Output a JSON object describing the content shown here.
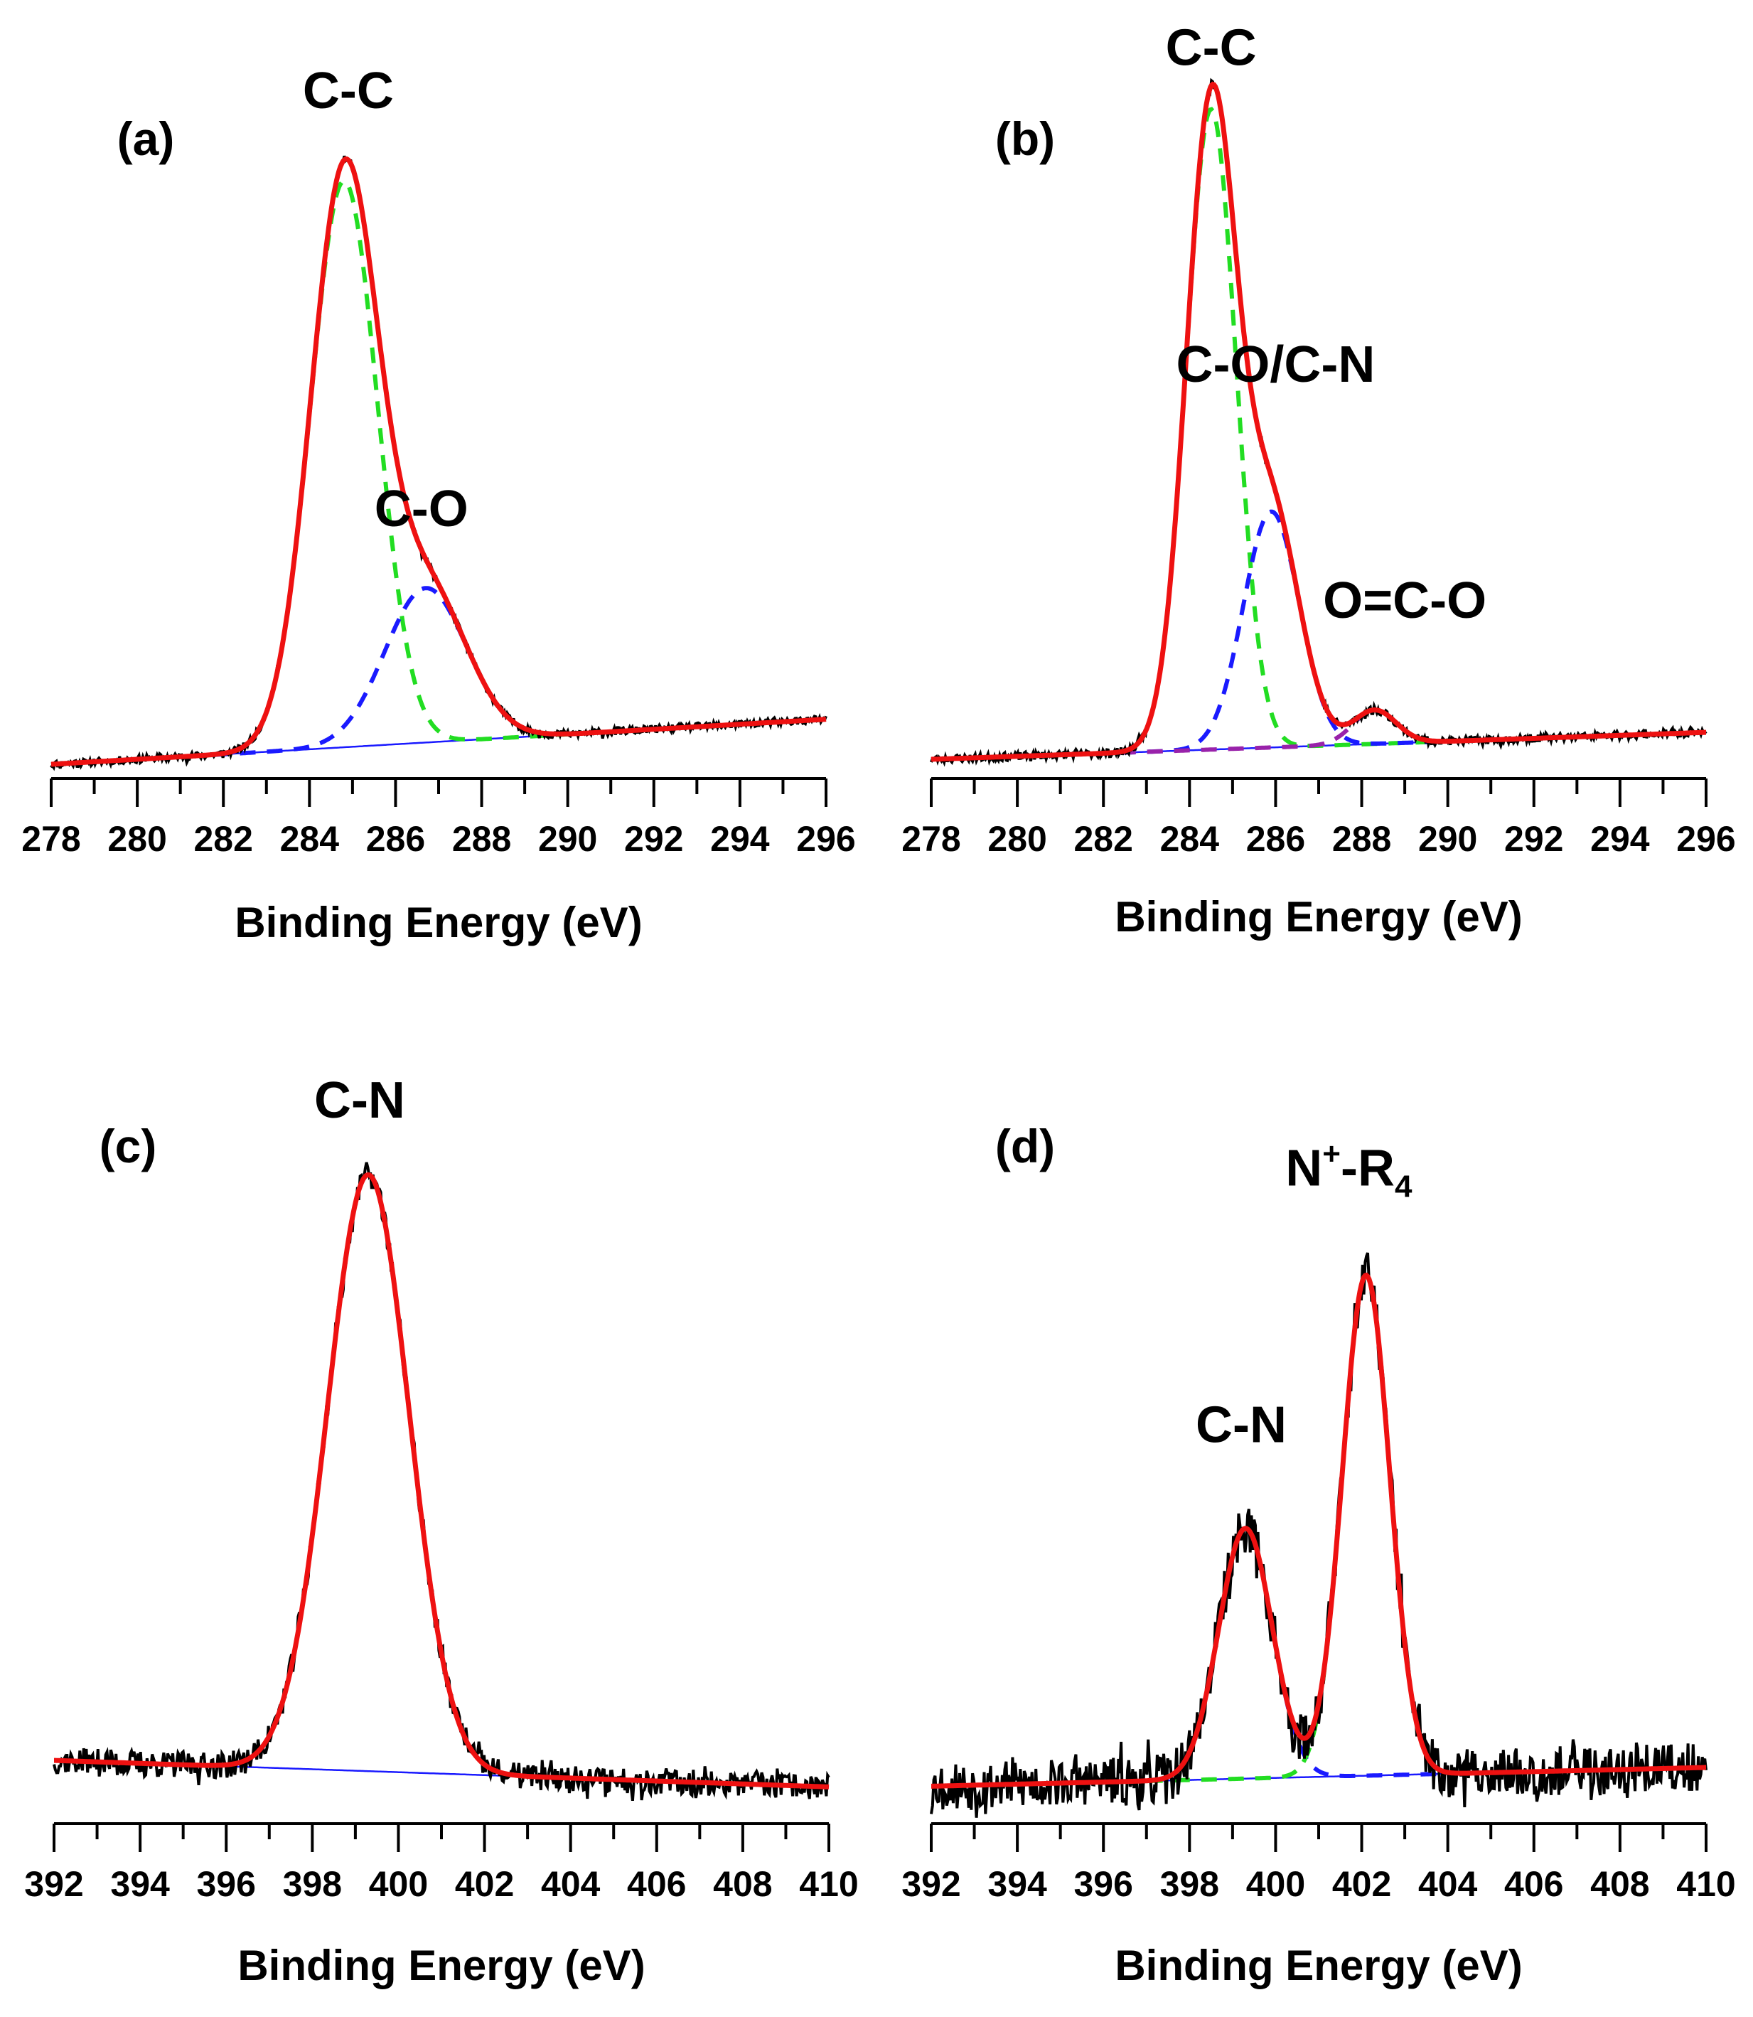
{
  "chart_data": [
    {
      "id": "a",
      "type": "line",
      "panel_label": "(a)",
      "xlabel": "Binding Energy (eV)",
      "ylabel": "",
      "xlim": [
        278,
        296
      ],
      "ylim": [
        0,
        100
      ],
      "xticks": [
        "278",
        "280",
        "282",
        "284",
        "286",
        "288",
        "290",
        "292",
        "294",
        "296"
      ],
      "background": {
        "start": 0,
        "end": 7
      },
      "peaks": [
        {
          "label": "C-C",
          "center": 284.8,
          "amplitude": 88,
          "sigma": 0.78,
          "color": "#22dd22"
        },
        {
          "label": "C-O",
          "center": 286.7,
          "amplitude": 24,
          "sigma": 0.95,
          "color": "#1a1aff"
        }
      ],
      "annotations": [
        {
          "text": "C-C",
          "x": 284.9,
          "y": 102,
          "sup": "",
          "sub": ""
        },
        {
          "text": "C-O",
          "x": 286.6,
          "y": 37,
          "sup": "",
          "sub": ""
        }
      ],
      "noise": 0.6,
      "seed": 11
    },
    {
      "id": "b",
      "type": "line",
      "panel_label": "(b)",
      "xlabel": "Binding Energy (eV)",
      "ylabel": "",
      "xlim": [
        278,
        296
      ],
      "ylim": [
        0,
        100
      ],
      "xticks": [
        "278",
        "280",
        "282",
        "284",
        "286",
        "288",
        "290",
        "292",
        "294",
        "296"
      ],
      "background": {
        "start": 0,
        "end": 4
      },
      "peaks": [
        {
          "label": "C-C",
          "center": 284.5,
          "amplitude": 95,
          "sigma": 0.58,
          "color": "#22dd22"
        },
        {
          "label": "C-O/C-N",
          "center": 285.9,
          "amplitude": 35,
          "sigma": 0.65,
          "color": "#1a1aff"
        },
        {
          "label": "O=C-O",
          "center": 288.3,
          "amplitude": 5,
          "sigma": 0.5,
          "color": "#9922aa"
        }
      ],
      "annotations": [
        {
          "text": "C-C",
          "x": 284.5,
          "y": 103,
          "sup": "",
          "sub": ""
        },
        {
          "text": "C-O/C-N",
          "x": 286.0,
          "y": 56,
          "sup": "",
          "sub": ""
        },
        {
          "text": "O=C-O",
          "x": 289.0,
          "y": 21,
          "sup": "",
          "sub": ""
        }
      ],
      "noise": 0.6,
      "seed": 23
    },
    {
      "id": "c",
      "type": "line",
      "panel_label": "(c)",
      "xlabel": "Binding Energy (eV)",
      "ylabel": "",
      "xlim": [
        392,
        410
      ],
      "ylim": [
        0,
        100
      ],
      "xticks": [
        "392",
        "394",
        "396",
        "398",
        "400",
        "402",
        "404",
        "406",
        "408",
        "410"
      ],
      "background": {
        "start": 6,
        "end": 2
      },
      "peaks": [
        {
          "label": "C-N",
          "center": 399.3,
          "amplitude": 90,
          "sigma": 0.95,
          "color": "#22dd22"
        }
      ],
      "annotations": [
        {
          "text": "C-N",
          "x": 399.1,
          "y": 103,
          "sup": "",
          "sub": ""
        }
      ],
      "noise": 2.0,
      "seed": 37
    },
    {
      "id": "d",
      "type": "line",
      "panel_label": "(d)",
      "xlabel": "Binding Energy (eV)",
      "ylabel": "",
      "xlim": [
        392,
        410
      ],
      "ylim": [
        0,
        100
      ],
      "xticks": [
        "392",
        "394",
        "396",
        "398",
        "400",
        "402",
        "404",
        "406",
        "408",
        "410"
      ],
      "background": {
        "start": 2,
        "end": 5
      },
      "peaks": [
        {
          "label": "C-N",
          "center": 399.3,
          "amplitude": 40,
          "sigma": 0.62,
          "color": "#1a1aff"
        },
        {
          "label": "N+-R4",
          "center": 402.1,
          "amplitude": 80,
          "sigma": 0.55,
          "color": "#22dd22"
        }
      ],
      "annotations": [
        {
          "text": "C-N",
          "x": 399.2,
          "y": 57,
          "sup": "",
          "sub": ""
        },
        {
          "text": "N",
          "x": 401.7,
          "y": 98,
          "sup": "+",
          "sub": "4",
          "rest": "-R"
        }
      ],
      "noise": 4.0,
      "seed": 53
    }
  ],
  "legend_colors": {
    "raw": "#000000",
    "fit": "#ee1111",
    "background": "#1a1aff"
  }
}
